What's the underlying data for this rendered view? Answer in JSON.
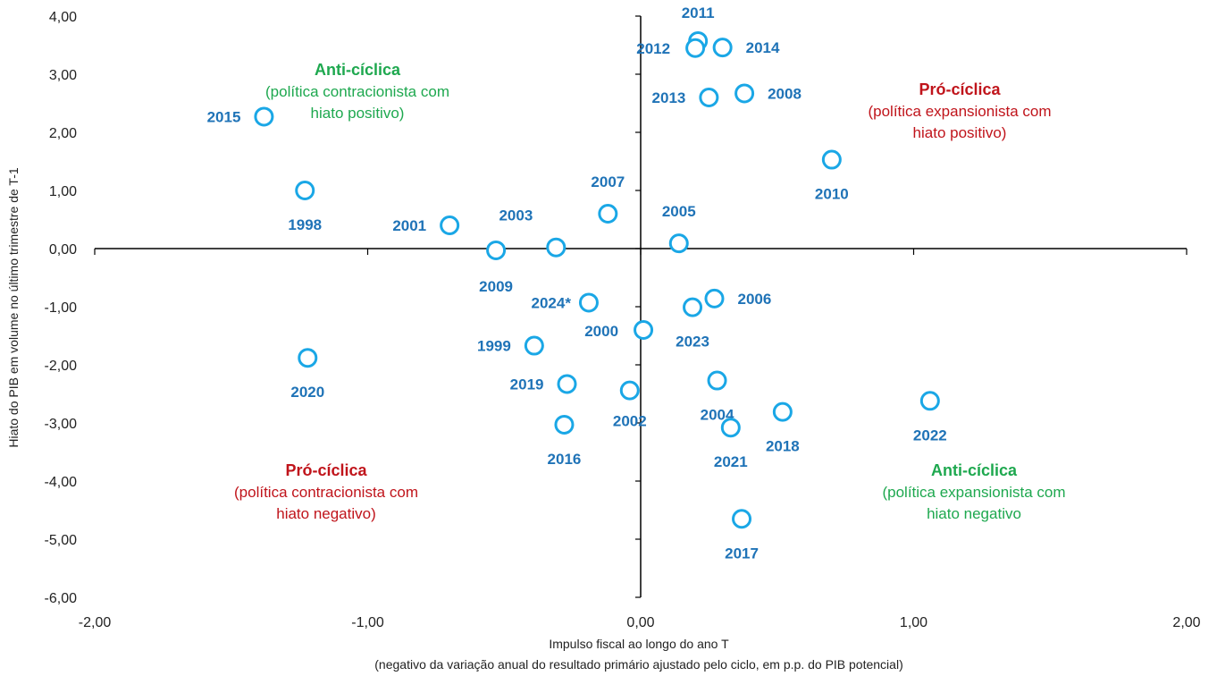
{
  "chart_data": {
    "type": "scatter",
    "xlabel_line1": "Impulso fiscal ao longo do ano T",
    "xlabel_line2": "(negativo da variação anual do resultado primário ajustado pelo ciclo, em p.p. do PIB potencial)",
    "ylabel": "Hiato do PIB em volume no último trimestre de T-1",
    "xlim": [
      -2,
      2
    ],
    "ylim": [
      -6,
      4
    ],
    "x_ticks": [
      "-2,00",
      "-1,00",
      "0,00",
      "1,00",
      "2,00"
    ],
    "y_ticks": [
      "4,00",
      "3,00",
      "2,00",
      "1,00",
      "0,00",
      "-1,00",
      "-2,00",
      "-3,00",
      "-4,00",
      "-5,00",
      "-6,00"
    ],
    "grid": false,
    "marker_color": "#1aa7e6",
    "label_color": "#1f73b7",
    "points": [
      {
        "label": "1998",
        "x": -1.23,
        "y": 1.0
      },
      {
        "label": "1999",
        "x": -0.39,
        "y": -1.67
      },
      {
        "label": "2000",
        "x": 0.01,
        "y": -1.4
      },
      {
        "label": "2001",
        "x": -0.7,
        "y": 0.4
      },
      {
        "label": "2002",
        "x": -0.04,
        "y": -2.44
      },
      {
        "label": "2003",
        "x": -0.31,
        "y": 0.02
      },
      {
        "label": "2004",
        "x": 0.28,
        "y": -2.27
      },
      {
        "label": "2005",
        "x": 0.14,
        "y": 0.09
      },
      {
        "label": "2006",
        "x": 0.27,
        "y": -0.86
      },
      {
        "label": "2007",
        "x": -0.12,
        "y": 0.6
      },
      {
        "label": "2008",
        "x": 0.38,
        "y": 2.67
      },
      {
        "label": "2009",
        "x": -0.53,
        "y": -0.03
      },
      {
        "label": "2010",
        "x": 0.7,
        "y": 1.53
      },
      {
        "label": "2011",
        "x": 0.21,
        "y": 3.57
      },
      {
        "label": "2012",
        "x": 0.2,
        "y": 3.45
      },
      {
        "label": "2013",
        "x": 0.25,
        "y": 2.6
      },
      {
        "label": "2014",
        "x": 0.3,
        "y": 3.46
      },
      {
        "label": "2015",
        "x": -1.38,
        "y": 2.27
      },
      {
        "label": "2016",
        "x": -0.28,
        "y": -3.03
      },
      {
        "label": "2017",
        "x": 0.37,
        "y": -4.65
      },
      {
        "label": "2018",
        "x": 0.52,
        "y": -2.81
      },
      {
        "label": "2019",
        "x": -0.27,
        "y": -2.33
      },
      {
        "label": "2020",
        "x": -1.22,
        "y": -1.88
      },
      {
        "label": "2021",
        "x": 0.33,
        "y": -3.08
      },
      {
        "label": "2022",
        "x": 1.06,
        "y": -2.62
      },
      {
        "label": "2023",
        "x": 0.19,
        "y": -1.01
      },
      {
        "label": "2024*",
        "x": -0.19,
        "y": -0.93
      }
    ],
    "annotations": [
      {
        "id": "upper-left",
        "title": "Anti-cíclica",
        "line1": "(política contracionista com",
        "line2": "hiato positivo)",
        "color": "#1ea84f"
      },
      {
        "id": "upper-right",
        "title": "Pró-cíclica",
        "line1": "(política expansionista com",
        "line2": "hiato positivo)",
        "color": "#c0141b"
      },
      {
        "id": "lower-left",
        "title": "Pró-cíclica",
        "line1": "(política contracionista com",
        "line2": "hiato negativo)",
        "color": "#c0141b"
      },
      {
        "id": "lower-right",
        "title": "Anti-cíclica",
        "line1": "(política expansionista com",
        "line2": "hiato negativo",
        "color": "#1ea84f"
      }
    ]
  }
}
